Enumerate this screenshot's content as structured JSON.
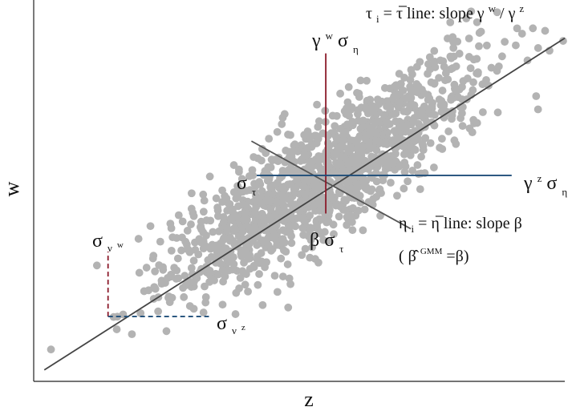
{
  "chart_data": {
    "type": "scatter",
    "title": "",
    "xlabel": "z",
    "ylabel": "w",
    "xlim": [
      0,
      100
    ],
    "ylim": [
      0,
      100
    ],
    "x_ticks": [],
    "y_ticks": [],
    "grid": false,
    "legend": "none",
    "colors": {
      "points": "#b3b3b3",
      "axis": "#222222",
      "text": "#111111",
      "tau_line": "#444444",
      "eta_line": "#555555",
      "gamma_w": "#8b1a2a",
      "gamma_z": "#1f4e79",
      "sigma_v_w": "#8b1a2a",
      "sigma_v_z": "#1f4e79"
    },
    "lines": [
      {
        "name": "tau-line",
        "x": [
          2,
          100
        ],
        "y": [
          3,
          90
        ]
      },
      {
        "name": "eta-line",
        "x": [
          41,
          71
        ],
        "y": [
          63,
          40
        ]
      },
      {
        "name": "gamma-w-segment",
        "x": [
          55,
          55
        ],
        "y": [
          44,
          86
        ]
      },
      {
        "name": "gamma-z-segment",
        "x": [
          42,
          90
        ],
        "y": [
          54,
          54
        ]
      },
      {
        "name": "sigma-v-w-segment",
        "x": [
          14,
          14
        ],
        "y": [
          17,
          34
        ]
      },
      {
        "name": "sigma-v-z-segment",
        "x": [
          14,
          33
        ],
        "y": [
          17,
          17
        ]
      }
    ],
    "scatter_generator": {
      "n": 1400,
      "x_mean": 55,
      "x_sd": 15,
      "slope": 0.89,
      "intercept": 5.2,
      "noise_sd": 8
    },
    "annotations": {
      "tau_line_label": {
        "tau": "τ",
        "sub": "i",
        "eq": "=",
        "tau_bar": "τ̅",
        "text": " line: slope ",
        "gamma_w": "γ",
        "gamma_w_sup": "w",
        "slash": " / ",
        "gamma_z": "γ",
        "gamma_z_sup": "z"
      },
      "gamma_w_sigma_eta": {
        "main": "γ",
        "sup": "w",
        "sigma": "σ",
        "sub": "η"
      },
      "sigma_tau_left": {
        "sigma": "σ",
        "sub": "τ"
      },
      "gamma_z_sigma_eta": {
        "main": "γ",
        "sup": "z",
        "sigma": "σ",
        "sub": "η"
      },
      "eta_line_label": {
        "eta": "η",
        "sub": "i",
        "eq": "=",
        "eta_bar": "η̅",
        "text": " line: slope β"
      },
      "beta_sigma_tau": {
        "beta": "β",
        "sigma": "σ",
        "sub": "τ"
      },
      "gmm_label": {
        "open": "(",
        "beta_hat": "β̂",
        "sup": "GMM",
        "eq": "=β)"
      },
      "sigma_v_w": {
        "sigma": "σ",
        "sub": "ν",
        "sub_sup": "w"
      },
      "sigma_v_z": {
        "sigma": "σ",
        "sub": "ν",
        "sub_sup": "z"
      }
    }
  }
}
